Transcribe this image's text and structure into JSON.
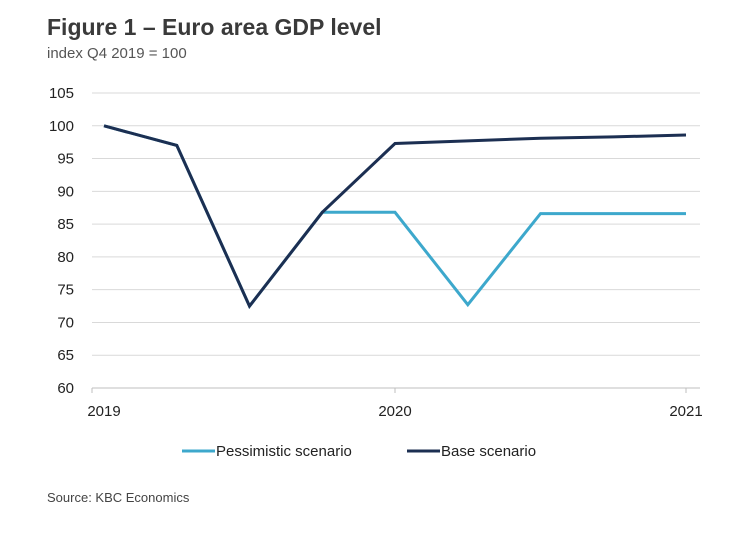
{
  "chart_data": {
    "type": "line",
    "title": "Figure 1 – Euro area GDP level",
    "subtitle": "index Q4 2019 = 100",
    "source": "Source: KBC Economics",
    "ylim": [
      60,
      105
    ],
    "yticks": [
      60,
      65,
      70,
      75,
      80,
      85,
      90,
      95,
      100,
      105
    ],
    "xticks": [
      {
        "label": "2019",
        "x": 0
      },
      {
        "label": "2020",
        "x": 4
      },
      {
        "label": "2021",
        "x": 8
      }
    ],
    "x": [
      0,
      1,
      2,
      3,
      4,
      5,
      6,
      7,
      8
    ],
    "series": [
      {
        "name": "Pessimistic scenario",
        "color": "#3da8cc",
        "values": [
          100,
          97,
          72.5,
          86.8,
          86.8,
          72.7,
          86.6,
          86.6,
          86.6
        ]
      },
      {
        "name": "Base scenario",
        "color": "#1c2f52",
        "values": [
          100,
          97,
          72.5,
          86.8,
          97.3,
          97.7,
          98.1,
          98.3,
          98.6
        ]
      }
    ],
    "grid": true,
    "legend": "bottom"
  }
}
